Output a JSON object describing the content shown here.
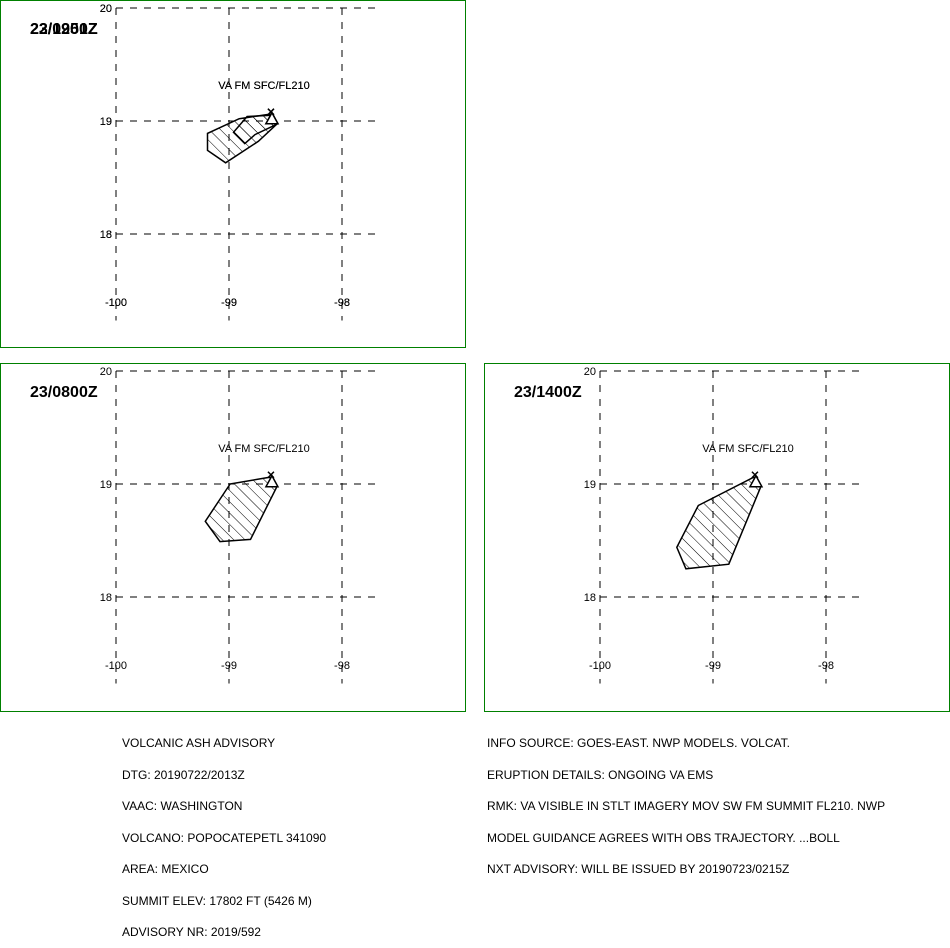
{
  "map": {
    "lon_ticks": [
      -100,
      -99,
      -98
    ],
    "lat_ticks": [
      18,
      19,
      20
    ],
    "lon_range": [
      -100,
      -98
    ],
    "lat_range": [
      17.5,
      20
    ],
    "grid": "dashed",
    "frame_color": "#008000",
    "panels": [
      {
        "time": "22/1951Z",
        "level_label": "VA FM SFC/FL210",
        "volcano": {
          "lon": -98.62,
          "lat": 19.02
        },
        "polygon": [
          [
            -98.84,
            19.04
          ],
          [
            -98.62,
            19.05
          ],
          [
            -98.58,
            18.97
          ],
          [
            -98.77,
            18.88
          ],
          [
            -98.86,
            18.8
          ],
          [
            -98.96,
            18.9
          ]
        ]
      },
      {
        "time": "23/0200Z",
        "level_label": "VA FM SFC/FL210",
        "volcano": {
          "lon": -98.62,
          "lat": 19.02
        },
        "polygon": [
          [
            -98.91,
            19.02
          ],
          [
            -98.64,
            19.06
          ],
          [
            -98.58,
            18.97
          ],
          [
            -98.74,
            18.82
          ],
          [
            -99.03,
            18.63
          ],
          [
            -99.19,
            18.74
          ],
          [
            -99.19,
            18.89
          ]
        ]
      },
      {
        "time": "23/0800Z",
        "level_label": "VA FM SFC/FL210",
        "volcano": {
          "lon": -98.62,
          "lat": 19.02
        },
        "polygon": [
          [
            -98.99,
            19.0
          ],
          [
            -98.64,
            19.06
          ],
          [
            -98.58,
            18.97
          ],
          [
            -98.81,
            18.51
          ],
          [
            -99.08,
            18.49
          ],
          [
            -99.21,
            18.67
          ]
        ]
      },
      {
        "time": "23/1400Z",
        "level_label": "VA FM SFC/FL210",
        "volcano": {
          "lon": -98.62,
          "lat": 19.02
        },
        "polygon": [
          [
            -99.13,
            18.81
          ],
          [
            -98.64,
            19.06
          ],
          [
            -98.58,
            18.97
          ],
          [
            -98.86,
            18.29
          ],
          [
            -99.24,
            18.25
          ],
          [
            -99.32,
            18.44
          ]
        ]
      }
    ]
  },
  "advisory": {
    "left_lines": [
      "VOLCANIC ASH ADVISORY",
      "DTG: 20190722/2013Z",
      "VAAC: WASHINGTON",
      "VOLCANO: POPOCATEPETL 341090",
      "AREA: MEXICO",
      "SUMMIT ELEV: 17802 FT (5426 M)",
      "ADVISORY NR: 2019/592"
    ],
    "right_lines": [
      "INFO SOURCE: GOES-EAST. NWP MODELS. VOLCAT.",
      "ERUPTION DETAILS: ONGOING VA EMS",
      "RMK: VA VISIBLE IN STLT IMAGERY MOV SW FM SUMMIT FL210. NWP",
      "MODEL GUIDANCE AGREES WITH OBS TRAJECTORY. ...BOLL",
      "NXT ADVISORY: WILL BE ISSUED BY 20190723/0215Z"
    ]
  }
}
